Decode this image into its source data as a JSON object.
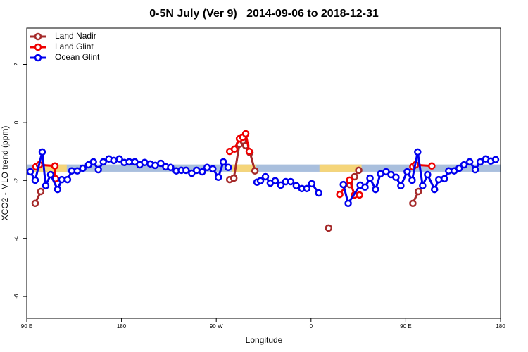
{
  "chart_data": {
    "type": "line",
    "title": "0-5N July (Ver 9)   2014-09-06 to 2018-12-31",
    "x_label": "Longitude",
    "y_label": "XCO2 - MLO trend (ppm)",
    "xlim": [
      90,
      540
    ],
    "ylim": [
      -6.75,
      3.25
    ],
    "xticks": [
      {
        "value": 90,
        "label": "90 E"
      },
      180,
      {
        "value": 270,
        "label": "90 W"
      },
      {
        "value": 360,
        "label": "0"
      },
      {
        "value": 450,
        "label": "90 E"
      },
      {
        "value": 540,
        "label": "180"
      }
    ],
    "yticks": [
      2,
      0,
      -2,
      -4,
      -6
    ],
    "legend_position": "top-left",
    "band": {
      "range": [
        -1.7,
        -1.45
      ],
      "color": "#a9bfdd",
      "highlight_color": "#f5d57a",
      "highlights": [
        [
          97,
          128
        ],
        [
          285,
          308
        ],
        [
          368,
          408
        ]
      ]
    },
    "series": [
      {
        "name": "Land Nadir",
        "color": "#a52a2a",
        "x": [
          98,
          103.3,
          null,
          282.7,
          286.7,
          292,
          295.3,
          298,
          302,
          306.7,
          null,
          376.7,
          null,
          396.7,
          401.3,
          405.3,
          null,
          456.7,
          462
        ],
        "values": [
          -2.79,
          -2.38,
          null,
          -1.97,
          -1.92,
          -0.75,
          -0.63,
          -0.8,
          -1.04,
          -1.67,
          null,
          -3.64,
          null,
          -2.14,
          -1.87,
          -1.65,
          null,
          -2.79,
          -2.38
        ]
      },
      {
        "name": "Land Glint",
        "color": "#ee0000",
        "x": [
          98.7,
          102,
          116.7,
          117.3,
          null,
          282.7,
          287.3,
          292,
          295.3,
          298,
          301.3,
          null,
          387.3,
          396.7,
          401.3,
          406,
          null,
          456.7,
          459.3,
          474.7
        ],
        "values": [
          -1.53,
          -1.46,
          -1.5,
          -1.94,
          null,
          -1.0,
          -0.92,
          -0.56,
          -0.51,
          -0.39,
          -1.0,
          null,
          -2.48,
          -1.99,
          -2.5,
          -2.5,
          null,
          -1.53,
          -1.46,
          -1.5
        ]
      },
      {
        "name": "Ocean Glint",
        "color": "#0000ee",
        "x": [
          93.3,
          98,
          104.7,
          108,
          112.7,
          119.3,
          123.3,
          128.7,
          132.7,
          138,
          143.3,
          148.7,
          153.3,
          158,
          162.7,
          168,
          172.7,
          178,
          182.7,
          187.3,
          192.7,
          197.3,
          202,
          207.3,
          212,
          217.3,
          222,
          226.7,
          232,
          236.7,
          241.3,
          246.7,
          251.3,
          256.7,
          261.3,
          266.7,
          272,
          276.7,
          281.3,
          null,
          308.7,
          312,
          316.7,
          321.3,
          326,
          331.3,
          336,
          340.7,
          346,
          351.3,
          356,
          360.7,
          367.3,
          null,
          390.7,
          395.3,
          406.7,
          411.3,
          416,
          421.3,
          426,
          431.3,
          436,
          440.7,
          445.3,
          451.3,
          456,
          461.3,
          466,
          470.7,
          477.3,
          481.3,
          486.7,
          490.7,
          496,
          500.7,
          505.3,
          510.7,
          516,
          520.7,
          526,
          530.7,
          535.3
        ],
        "values": [
          -1.7,
          -1.99,
          -1.02,
          -2.18,
          -1.8,
          -2.31,
          -1.97,
          -1.97,
          -1.67,
          -1.67,
          -1.58,
          -1.46,
          -1.36,
          -1.63,
          -1.36,
          -1.26,
          -1.31,
          -1.26,
          -1.38,
          -1.36,
          -1.36,
          -1.46,
          -1.38,
          -1.43,
          -1.48,
          -1.41,
          -1.53,
          -1.55,
          -1.67,
          -1.65,
          -1.65,
          -1.75,
          -1.65,
          -1.7,
          -1.55,
          -1.6,
          -1.89,
          -1.36,
          -1.55,
          null,
          -2.06,
          -2.01,
          -1.87,
          -2.09,
          -2.01,
          -2.16,
          -2.04,
          -2.04,
          -2.18,
          -2.28,
          -2.28,
          -2.11,
          -2.43,
          null,
          -2.14,
          -2.79,
          -2.16,
          -2.23,
          -1.92,
          -2.31,
          -1.77,
          -1.7,
          -1.8,
          -1.89,
          -2.18,
          -1.7,
          -1.99,
          -1.02,
          -2.18,
          -1.8,
          -2.31,
          -1.97,
          -1.94,
          -1.67,
          -1.67,
          -1.58,
          -1.46,
          -1.36,
          -1.63,
          -1.36,
          -1.26,
          -1.33,
          -1.28
        ]
      }
    ]
  }
}
